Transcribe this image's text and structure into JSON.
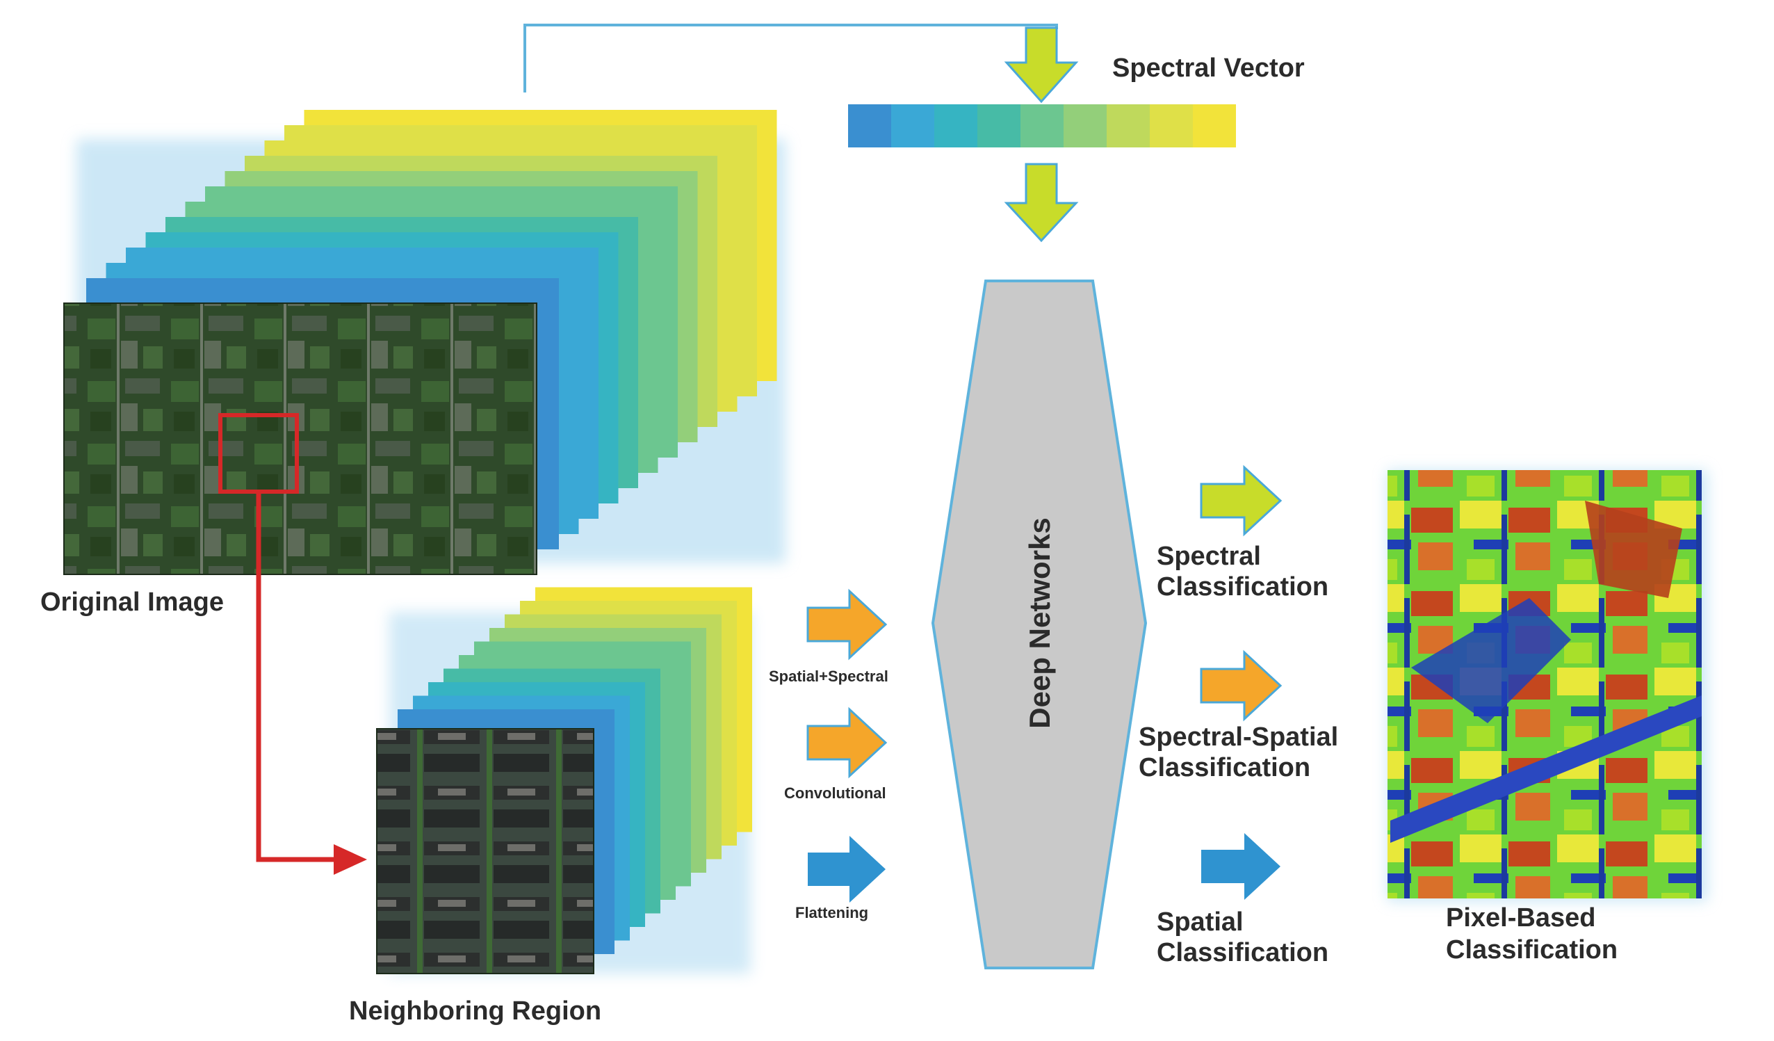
{
  "labels": {
    "spectral_vector": "Spectral Vector",
    "original_image": "Original Image",
    "neighboring_region": "Neighboring Region",
    "deep_networks": "Deep Networks",
    "spatial_spectral": "Spatial+Spectral",
    "convolutional": "Convolutional",
    "flattening": "Flattening",
    "spectral_classification_1": "Spectral",
    "spectral_classification_2": "Classification",
    "spectral_spatial_1": "Spectral-Spatial",
    "spectral_spatial_2": "Classification",
    "spatial_classification_1": "Spatial",
    "spatial_classification_2": "Classification",
    "pixel_based_1": "Pixel-Based",
    "pixel_based_2": "Classification"
  },
  "colors": {
    "band_ramp": [
      "#3a8fd0",
      "#3aa8d6",
      "#36b4c2",
      "#47bba6",
      "#6cc690",
      "#93cf7a",
      "#bfd95c",
      "#dfe048",
      "#f2e33a"
    ],
    "yellow_green_arrow": "#c8dc2a",
    "orange_arrow": "#f5a62a",
    "blue_arrow": "#2f93d0",
    "network_fill": "#c9c9c9",
    "network_stroke": "#5fb3dc",
    "red_link": "#d62828",
    "connector_line": "#5fb3dc"
  },
  "icons": {
    "original_image": "satellite-image",
    "neighboring_region": "satellite-image-crop",
    "classification_map": "classification-map"
  }
}
